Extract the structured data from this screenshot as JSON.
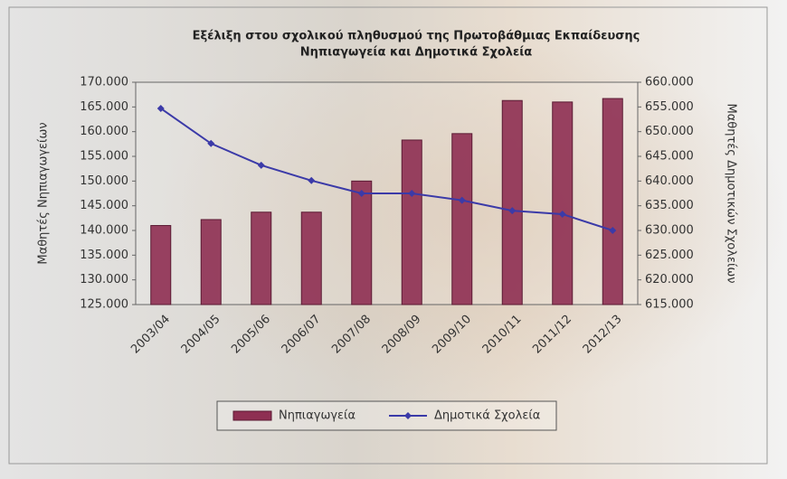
{
  "chart_data": {
    "type": "bar-line",
    "title": "Εξέλιξη στου σχολικού πληθυσμού της Πρωτοβάθμιας Εκπαίδευσης",
    "subtitle": "Νηπιαγωγεία και Δημοτικά Σχολεία",
    "y_label": "Μαθητές Νηπιαγωγείων",
    "y2_label": "Μαθητές Δημοτικών Σχολείων",
    "categories": [
      "2003/04",
      "2004/05",
      "2005/06",
      "2006/07",
      "2007/08",
      "2008/09",
      "2009/10",
      "2010/11",
      "2011/12",
      "2012/13"
    ],
    "series": [
      {
        "name": "Νηπιαγωγεία",
        "type": "bar",
        "color": "#8e2f52",
        "values": [
          141000,
          142200,
          143700,
          143700,
          150000,
          158300,
          159600,
          166300,
          166000,
          166700
        ]
      },
      {
        "name": "Δημοτικά Σχολεία",
        "type": "line",
        "axis": "y2",
        "color": "#3b3aa8",
        "values": [
          654700,
          647600,
          643200,
          640100,
          637500,
          637500,
          636100,
          634000,
          633300,
          630000
        ]
      }
    ],
    "ylim": [
      125000,
      170000
    ],
    "yticks": [
      {
        "value": 125000,
        "label": "125.000"
      },
      {
        "value": 130000,
        "label": "130.000"
      },
      {
        "value": 135000,
        "label": "135.000"
      },
      {
        "value": 140000,
        "label": "140.000"
      },
      {
        "value": 145000,
        "label": "145.000"
      },
      {
        "value": 150000,
        "label": "150.000"
      },
      {
        "value": 155000,
        "label": "155.000"
      },
      {
        "value": 160000,
        "label": "160.000"
      },
      {
        "value": 165000,
        "label": "165.000"
      },
      {
        "value": 170000,
        "label": "170.000"
      }
    ],
    "y2lim": [
      615000,
      660000
    ],
    "y2ticks": [
      {
        "value": 615000,
        "label": "615.000"
      },
      {
        "value": 620000,
        "label": "620.000"
      },
      {
        "value": 625000,
        "label": "625.000"
      },
      {
        "value": 630000,
        "label": "630.000"
      },
      {
        "value": 635000,
        "label": "635.000"
      },
      {
        "value": 640000,
        "label": "640.000"
      },
      {
        "value": 645000,
        "label": "645.000"
      },
      {
        "value": 650000,
        "label": "650.000"
      },
      {
        "value": 655000,
        "label": "655.000"
      },
      {
        "value": 660000,
        "label": "660.000"
      }
    ],
    "grid": false,
    "legend": "bottom"
  }
}
